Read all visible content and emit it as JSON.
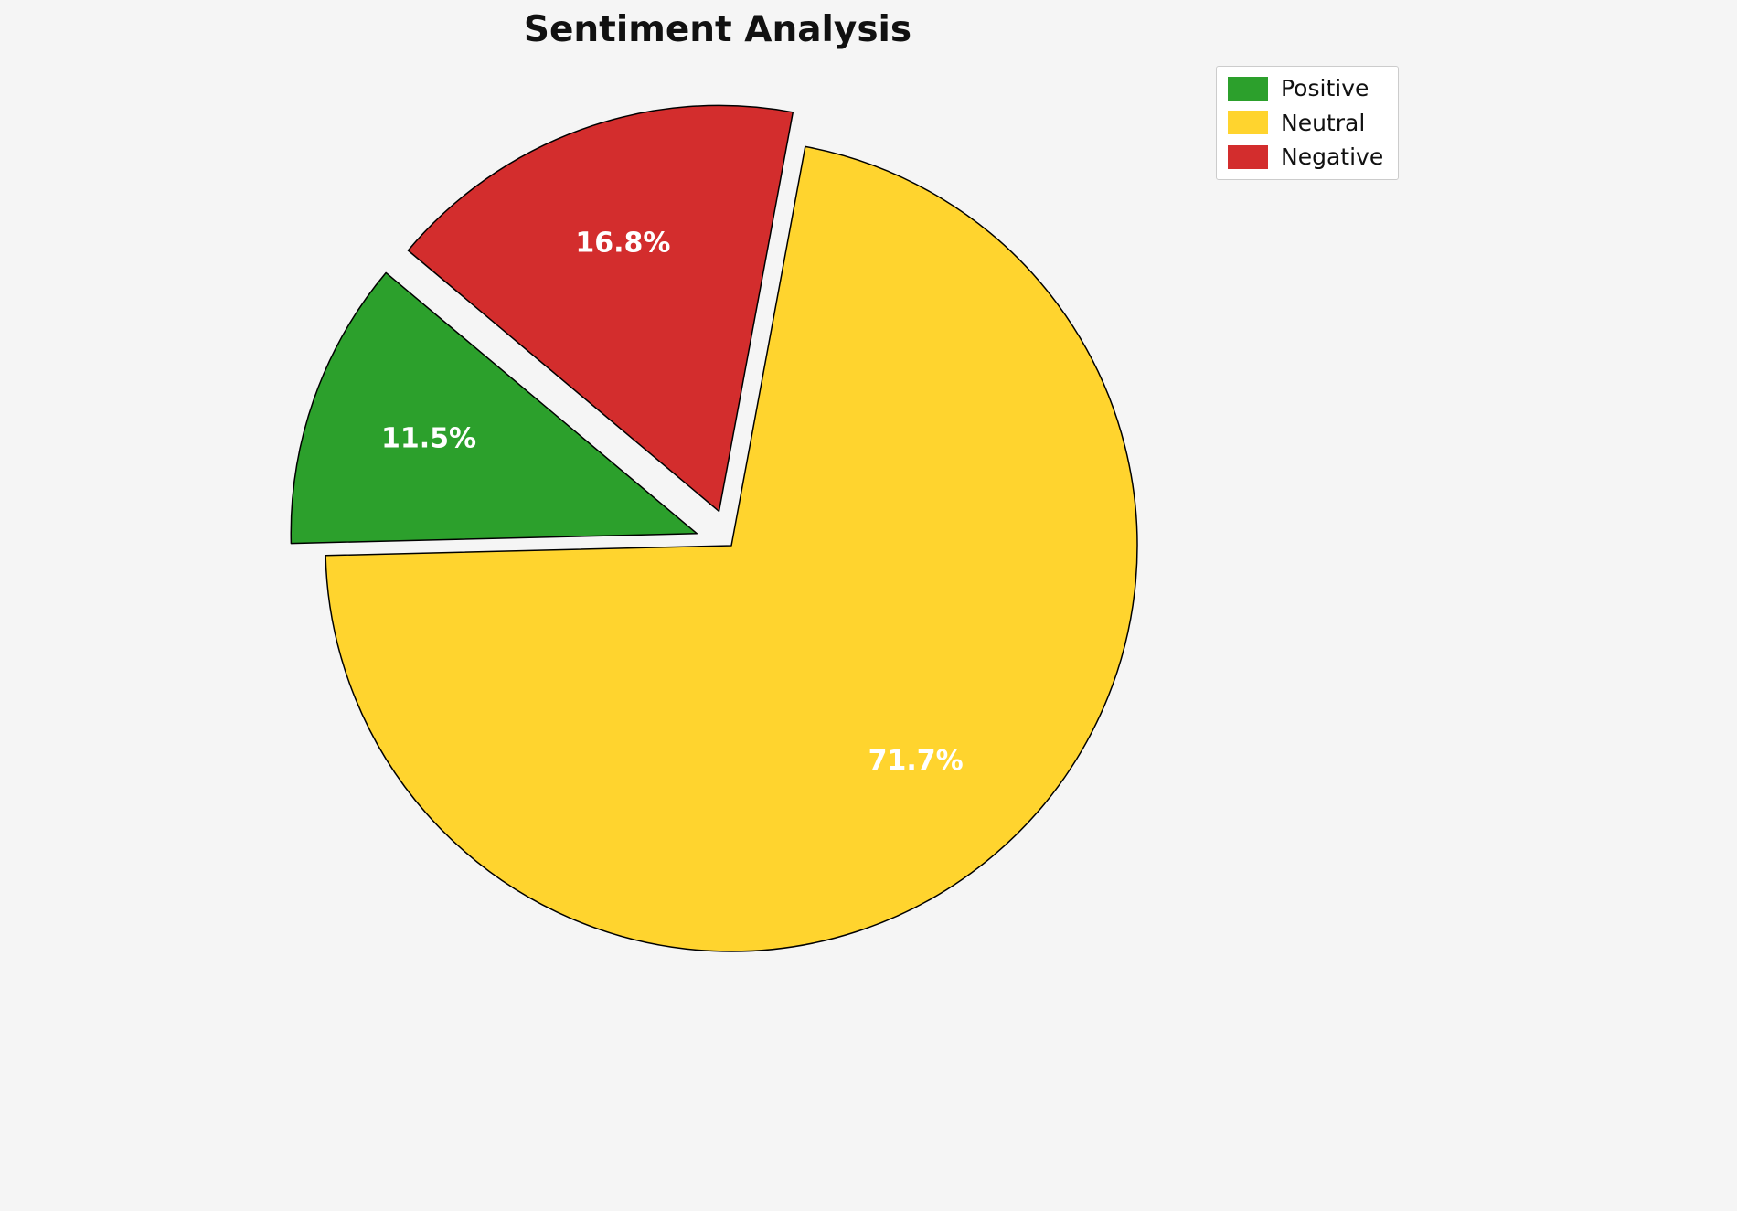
{
  "chart_data": {
    "type": "pie",
    "title": "Sentiment Analysis",
    "labels": [
      "Positive",
      "Neutral",
      "Negative"
    ],
    "values": [
      11.5,
      71.7,
      16.8
    ],
    "pct_labels": [
      "11.5%",
      "71.7%",
      "16.8%"
    ],
    "colors": [
      "#2CA02C",
      "#FFD42E",
      "#D32D2D"
    ],
    "edge_color": "#000000",
    "background": "#f5f5f5",
    "start_angle": 140,
    "counterclockwise": true,
    "explode": [
      0.09,
      0,
      0.09
    ],
    "pct_distance": 0.7,
    "legend": {
      "position": "upper right",
      "entries": [
        "Positive",
        "Neutral",
        "Negative"
      ]
    }
  }
}
